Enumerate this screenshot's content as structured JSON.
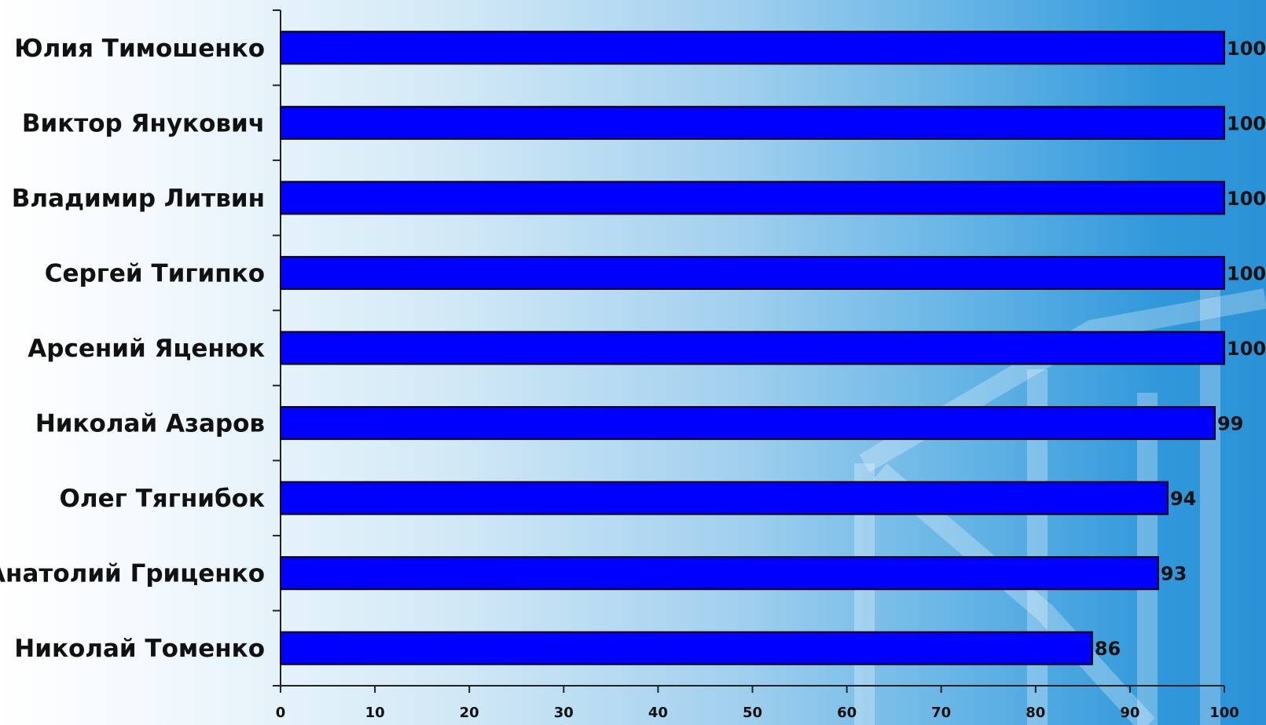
{
  "colors": {
    "bar": "#0000ff",
    "bar_stroke": "#000000",
    "axis": "#222222"
  },
  "chart_data": {
    "type": "bar",
    "orientation": "horizontal",
    "categories": [
      "Юлия Тимошенко",
      "Виктор Янукович",
      "Владимир Литвин",
      "Сергей Тигипко",
      "Арсений Яценюк",
      "Николай Азаров",
      "Олег Тягнибок",
      "Анатолий Гриценко",
      "Николай Томенко"
    ],
    "values": [
      100,
      100,
      100,
      100,
      100,
      99,
      94,
      93,
      86
    ],
    "xlim": [
      0,
      100
    ],
    "xticks": [
      0,
      10,
      20,
      30,
      40,
      50,
      60,
      70,
      80,
      90,
      100
    ],
    "grid": false,
    "legend": "none"
  }
}
